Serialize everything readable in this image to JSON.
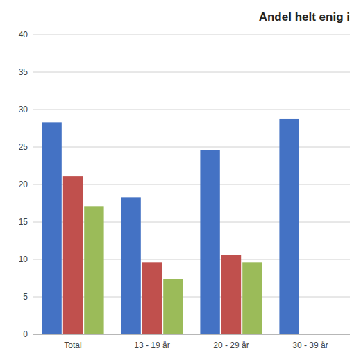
{
  "chart_data": {
    "type": "bar",
    "title": "Andel helt enig i",
    "categories": [
      "Total",
      "13 - 19 år",
      "20 - 29 år",
      "30 - 39 år"
    ],
    "series": [
      {
        "color": "#4472C4",
        "values": [
          28.3,
          18.3,
          24.6,
          28.8
        ]
      },
      {
        "color": "#C0504D",
        "values": [
          21.1,
          9.6,
          10.6,
          0
        ]
      },
      {
        "color": "#9BBB59",
        "values": [
          17.1,
          7.4,
          9.6,
          0
        ]
      }
    ],
    "ylim": [
      0,
      40
    ],
    "yticks": [
      0,
      5,
      10,
      15,
      20,
      25,
      30,
      35,
      40
    ],
    "grid": true
  }
}
